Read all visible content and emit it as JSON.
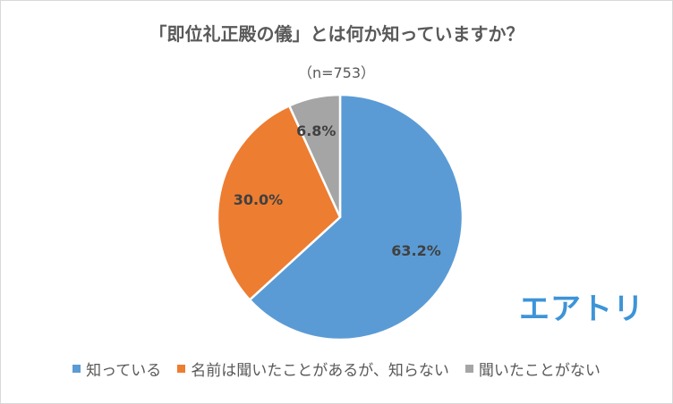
{
  "chart_data": {
    "type": "pie",
    "title": "「即位礼正殿の儀」とは何か知っていますか？",
    "subtitle": "（n=753）",
    "categories": [
      "知っている",
      "名前は聞いたことがあるが、知らない",
      "聞いたことがない"
    ],
    "values": [
      63.2,
      30.0,
      6.8
    ],
    "labels": [
      "63.2%",
      "30.0%",
      "6.8%"
    ],
    "colors": [
      "#5b9bd5",
      "#ed7d31",
      "#a5a5a5"
    ],
    "legend_position": "bottom",
    "start_angle": "12 o'clock, clockwise"
  },
  "logo": {
    "text": "エアトリ"
  }
}
